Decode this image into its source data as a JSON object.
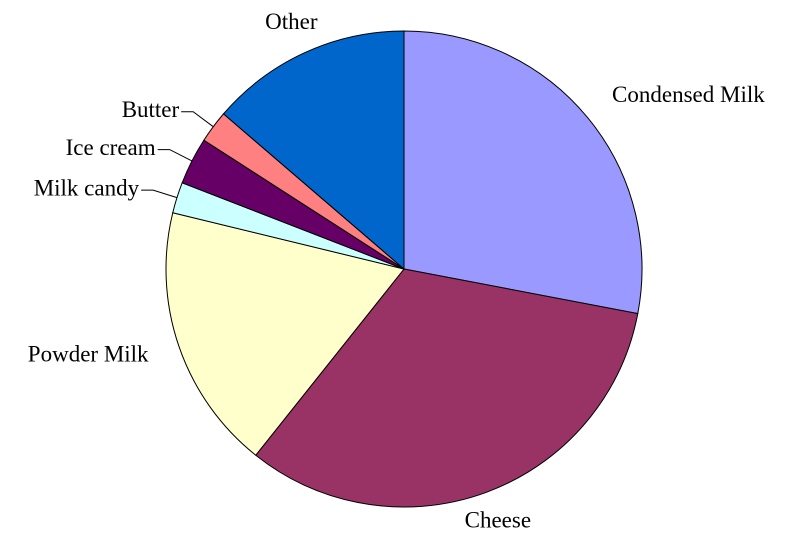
{
  "chart_data": {
    "type": "pie",
    "categories": [
      "Condensed Milk",
      "Cheese",
      "Powder Milk",
      "Milk candy",
      "Ice cream",
      "Butter",
      "Other"
    ],
    "values": [
      28,
      32.7,
      18.1,
      2.1,
      3.2,
      2.2,
      13.7
    ],
    "colors": [
      "#9999ff",
      "#993366",
      "#ffffcc",
      "#ccffff",
      "#660066",
      "#ff8080",
      "#0066cc"
    ]
  }
}
